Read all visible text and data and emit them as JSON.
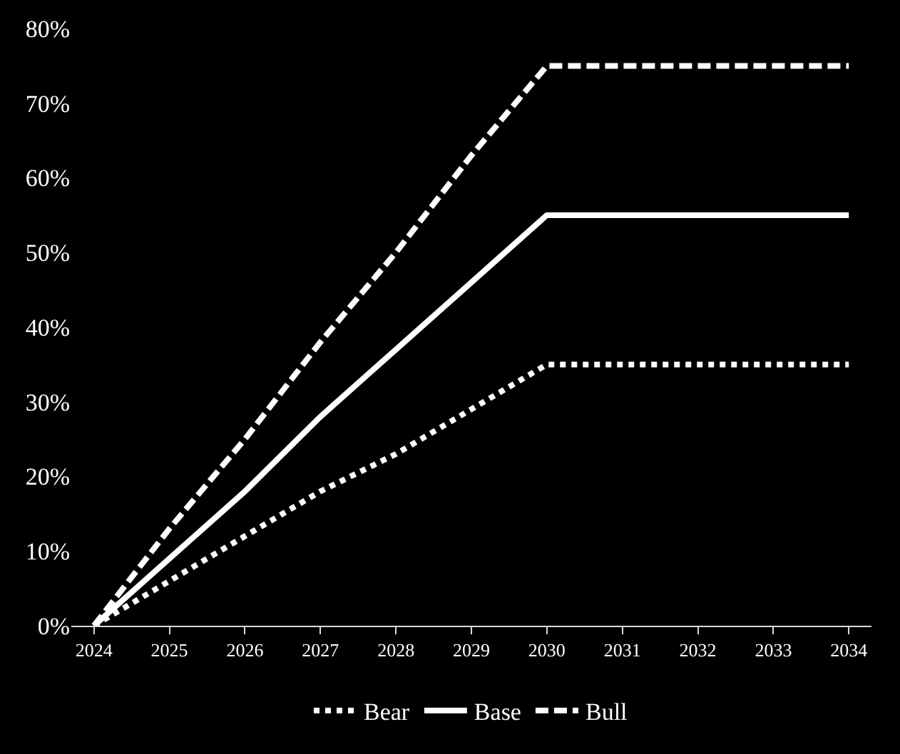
{
  "chart_data": {
    "type": "line",
    "categories": [
      "2024",
      "2025",
      "2026",
      "2027",
      "2028",
      "2029",
      "2030",
      "2031",
      "2032",
      "2033",
      "2034"
    ],
    "series": [
      {
        "name": "Bear",
        "color": "#ffffff",
        "line_style": "dotted",
        "values": [
          0,
          6,
          12,
          18,
          23,
          29,
          35,
          35,
          35,
          35,
          35
        ]
      },
      {
        "name": "Base",
        "color": "#ffffff",
        "line_style": "solid",
        "values": [
          0,
          9,
          18,
          28,
          37,
          46,
          55,
          55,
          55,
          55,
          55
        ]
      },
      {
        "name": "Bull",
        "color": "#ffffff",
        "line_style": "dashed",
        "values": [
          0,
          13,
          25,
          38,
          50,
          63,
          75,
          75,
          75,
          75,
          75
        ]
      }
    ],
    "ylim": [
      0,
      80
    ],
    "yticks": [
      {
        "value": 0,
        "label": "0%"
      },
      {
        "value": 10,
        "label": "10%"
      },
      {
        "value": 20,
        "label": "20%"
      },
      {
        "value": 30,
        "label": "30%"
      },
      {
        "value": 40,
        "label": "40%"
      },
      {
        "value": 50,
        "label": "50%"
      },
      {
        "value": 60,
        "label": "60%"
      },
      {
        "value": 70,
        "label": "70%"
      },
      {
        "value": 80,
        "label": "80%"
      }
    ],
    "grid": false,
    "legend": "bottom",
    "marker": "none"
  }
}
